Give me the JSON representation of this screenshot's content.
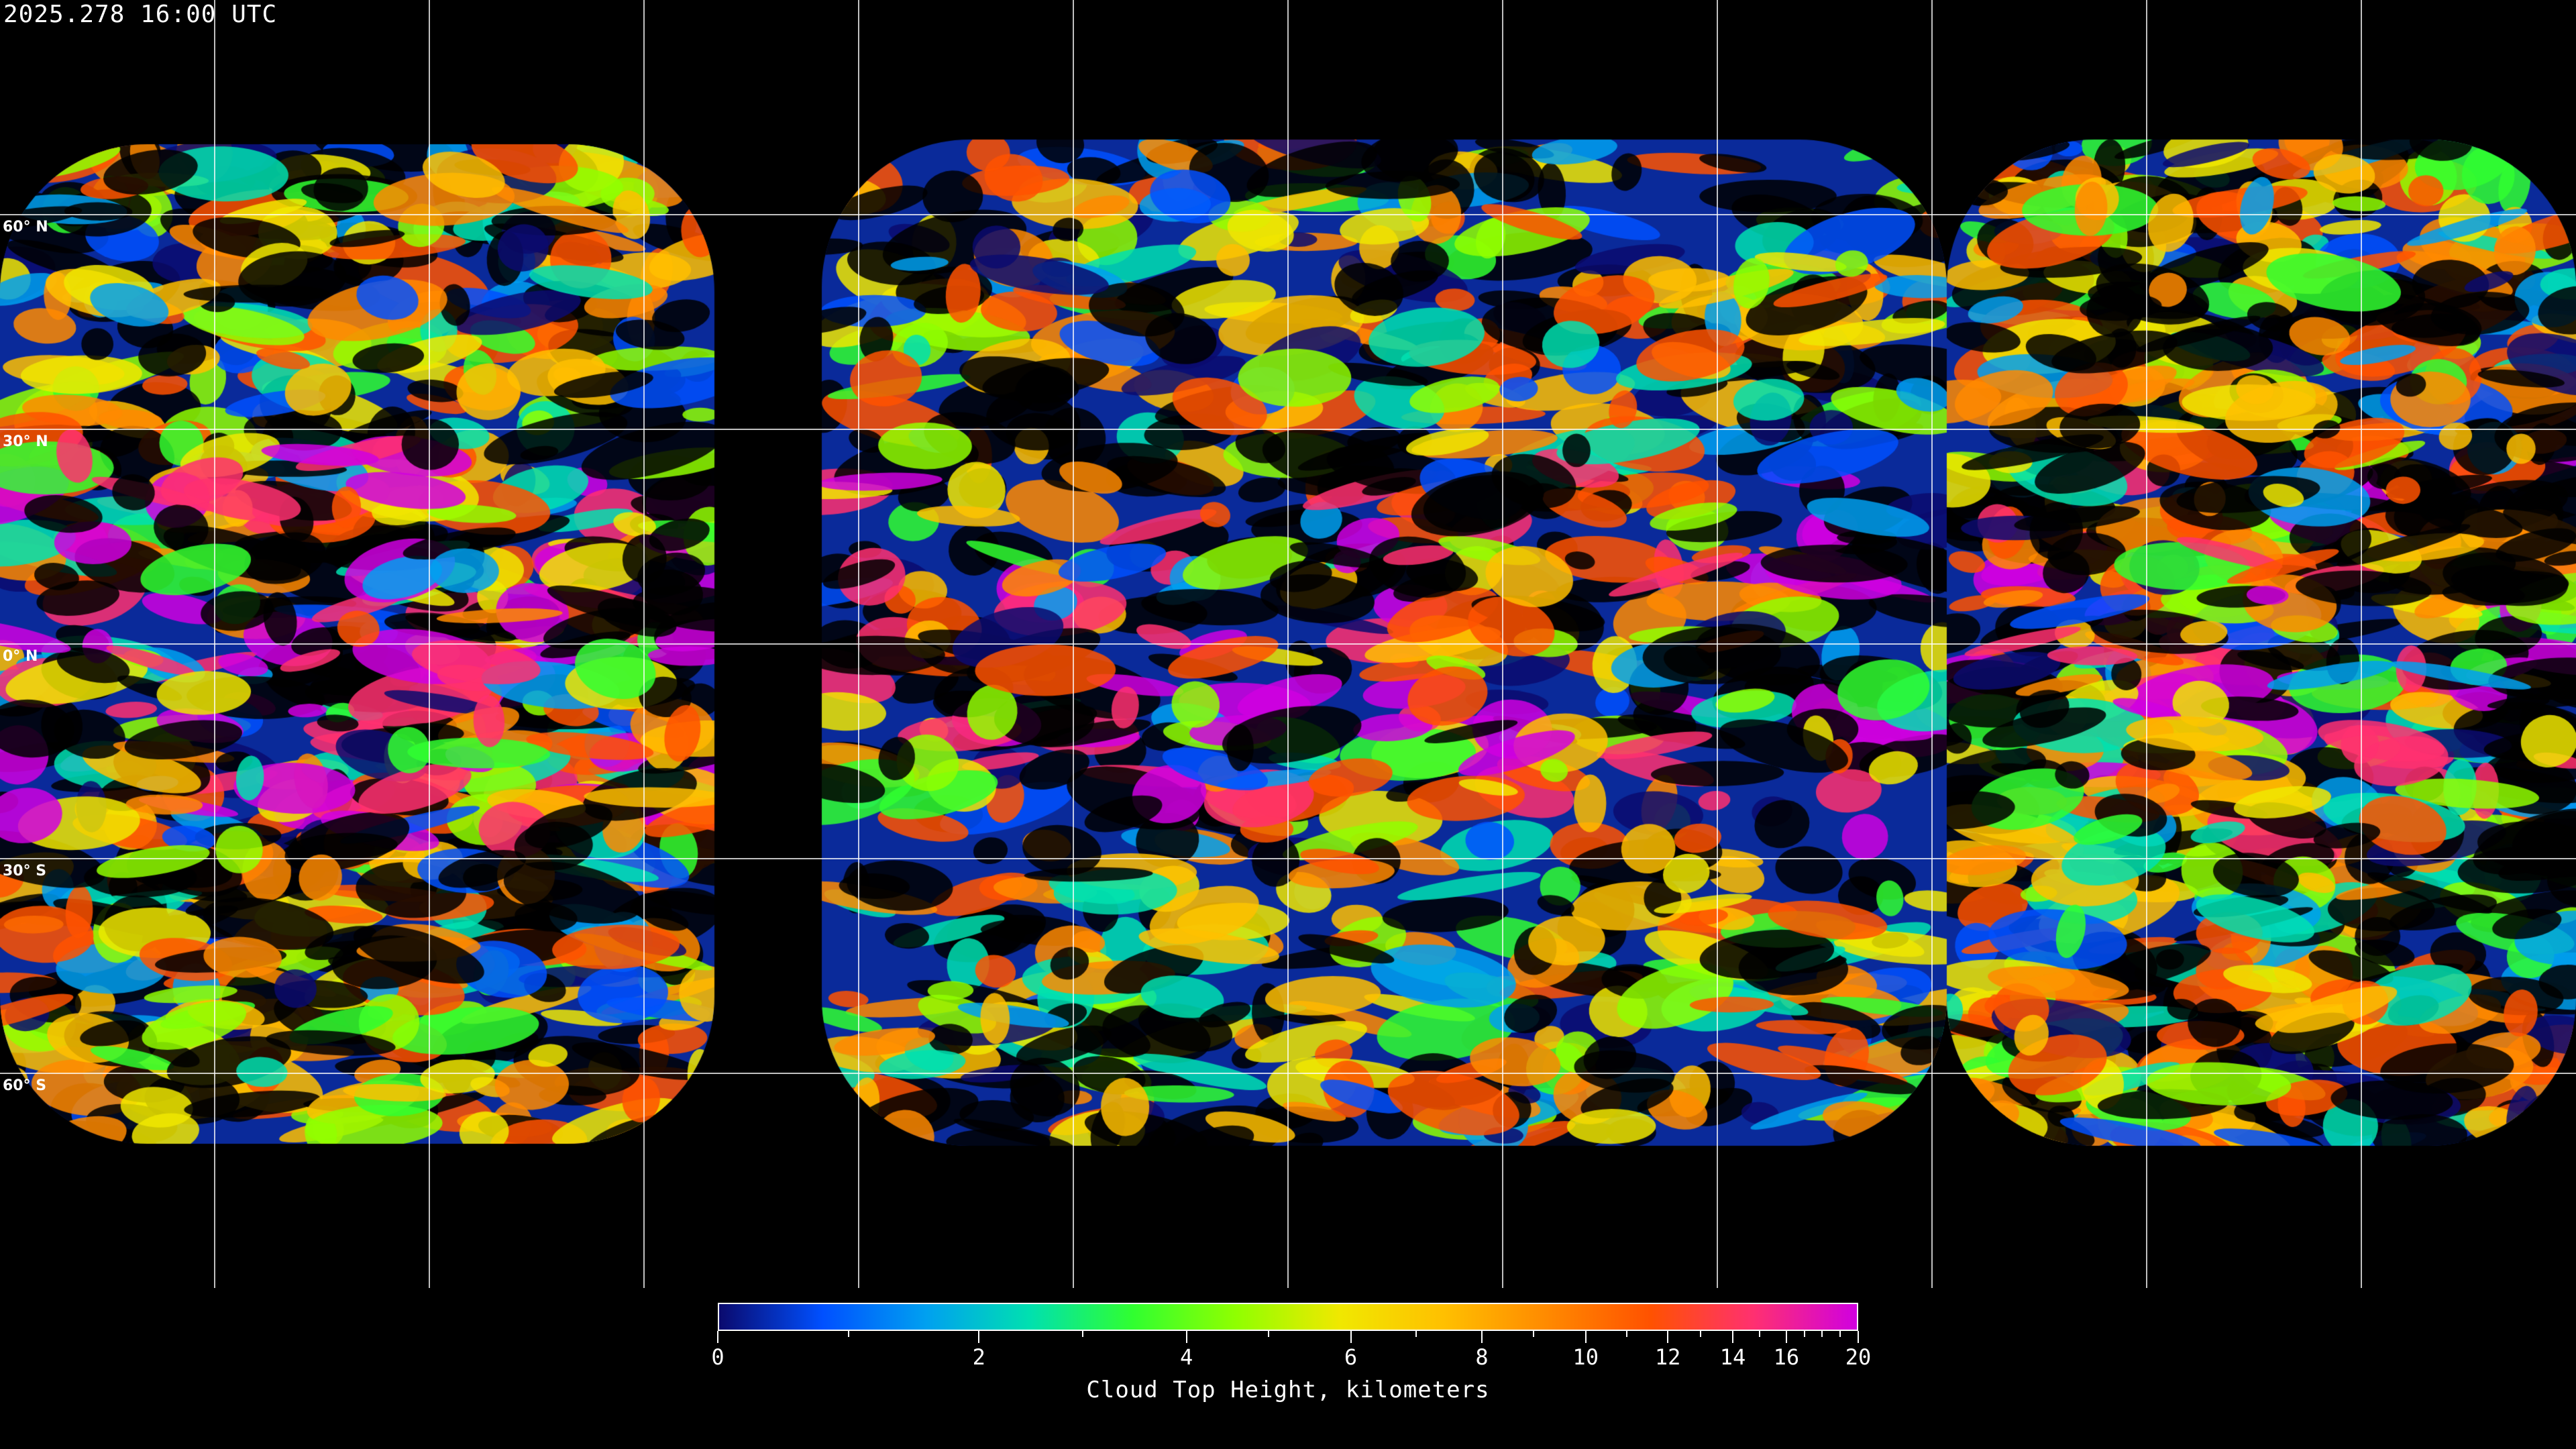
{
  "timestamp": "2025.278 16:00 UTC",
  "map": {
    "projection": "equirectangular",
    "latitude_labels": [
      "60° N",
      "30° N",
      "0° N",
      "30° S",
      "60° S"
    ],
    "gridline_color": "#ffffff",
    "no_data_color": "#000000"
  },
  "colorbar": {
    "title": "Cloud Top Height, kilometers",
    "range": [
      0,
      20
    ],
    "major_ticks": [
      {
        "value": 0,
        "label": "0"
      },
      {
        "value": 2,
        "label": "2"
      },
      {
        "value": 4,
        "label": "4"
      },
      {
        "value": 6,
        "label": "6"
      },
      {
        "value": 8,
        "label": "8"
      },
      {
        "value": 10,
        "label": "10"
      },
      {
        "value": 12,
        "label": "12"
      },
      {
        "value": 14,
        "label": "14"
      },
      {
        "value": 16,
        "label": "16"
      },
      {
        "value": 20,
        "label": "20"
      }
    ],
    "minor_ticks": [
      1,
      3,
      5,
      7,
      9,
      11,
      13,
      15,
      17,
      18,
      19
    ],
    "colors": [
      "#0a0a6e",
      "#0050ff",
      "#00a0f0",
      "#00e0b0",
      "#30ff30",
      "#90ff00",
      "#f0e800",
      "#ffc000",
      "#ff8a00",
      "#ff5200",
      "#ff3070",
      "#d000e0"
    ]
  }
}
